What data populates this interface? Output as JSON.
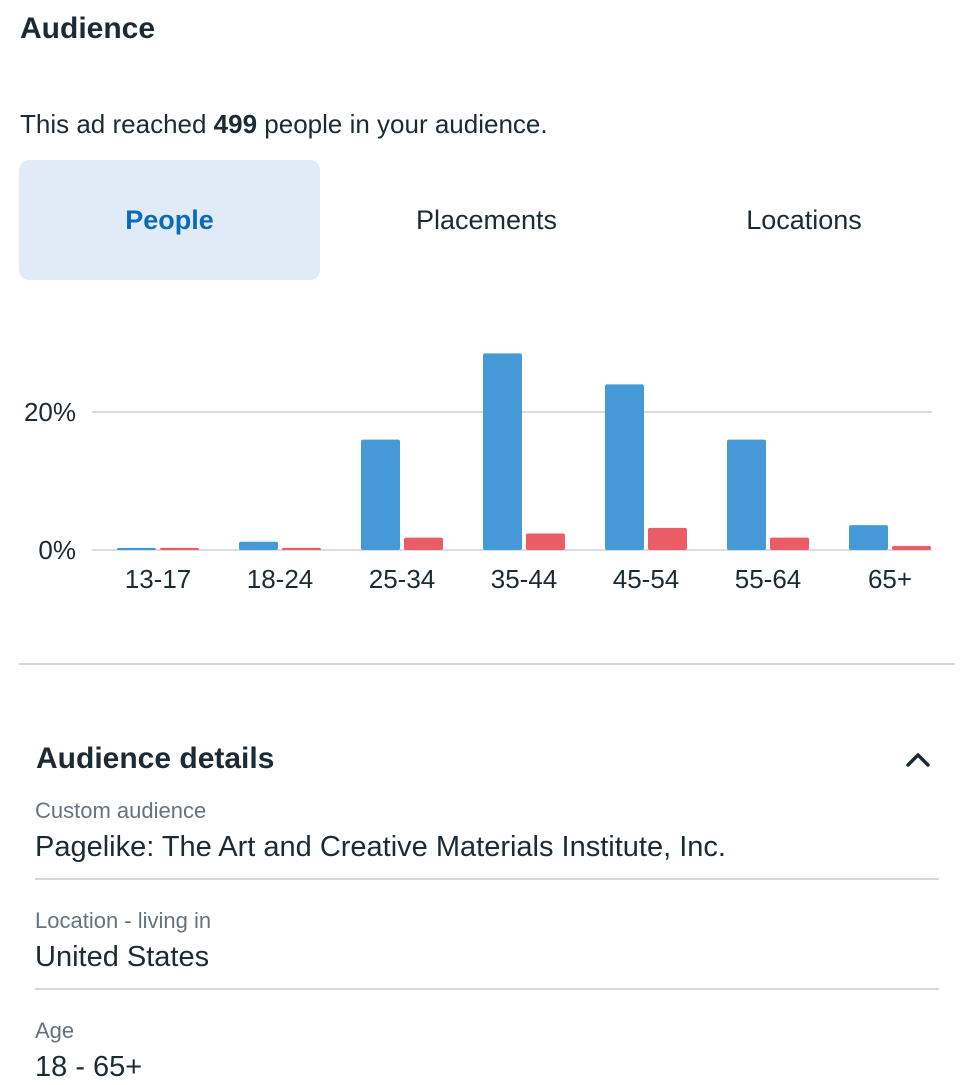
{
  "section": {
    "title": "Audience",
    "reach_prefix": "This ad reached ",
    "reach_count": "499",
    "reach_suffix": " people in your audience."
  },
  "tabs": [
    {
      "label": "People",
      "active": true
    },
    {
      "label": "Placements",
      "active": false
    },
    {
      "label": "Locations",
      "active": false
    }
  ],
  "colors": {
    "series_a": "#4499d6",
    "series_b": "#ea5d67",
    "active_tab_bg": "#e1ebf7",
    "active_tab_text": "#0a6bb8"
  },
  "chart_data": {
    "type": "bar",
    "categories": [
      "13-17",
      "18-24",
      "25-34",
      "35-44",
      "45-54",
      "55-64",
      "65+"
    ],
    "series": [
      {
        "values": [
          0.3,
          1.2,
          16,
          28.5,
          24,
          16,
          3.6
        ]
      },
      {
        "values": [
          0.3,
          0.3,
          1.8,
          2.4,
          3.2,
          1.8,
          0.6
        ]
      }
    ],
    "yticks": [
      "0%",
      "20%"
    ],
    "ylim": [
      0,
      30
    ],
    "grid": true,
    "legend": "none"
  },
  "details": {
    "title": "Audience details",
    "toggle_icon": "chevron-up-icon",
    "items": [
      {
        "label": "Custom audience",
        "value": "Pagelike: The Art and Creative Materials Institute, Inc."
      },
      {
        "label": "Location - living in",
        "value": "United States"
      },
      {
        "label": "Age",
        "value": "18 - 65+"
      }
    ]
  }
}
